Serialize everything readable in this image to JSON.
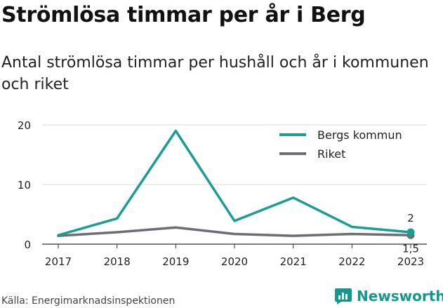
{
  "title": "Strömlösa timmar per år i Berg",
  "subtitle": "Antal strömlösa timmar per hushåll och år i kommunen och riket",
  "source": "Källa: Energimarknadsinspektionen",
  "brand": {
    "name": "Newsworthy",
    "icon": "newsworthy-logo-icon",
    "color": "#139891"
  },
  "chart_data": {
    "type": "line",
    "x": [
      "2017",
      "2018",
      "2019",
      "2020",
      "2021",
      "2022",
      "2023"
    ],
    "series": [
      {
        "name": "Bergs kommun",
        "color": "#1a9e94",
        "values": [
          1.5,
          4.3,
          19.0,
          3.9,
          7.8,
          2.9,
          2.0
        ],
        "end_label": "2"
      },
      {
        "name": "Riket",
        "color": "#6d6d75",
        "values": [
          1.4,
          2.0,
          2.8,
          1.7,
          1.4,
          1.7,
          1.5
        ],
        "end_label": "1,5"
      }
    ],
    "ylim": [
      0,
      20
    ],
    "yticks": [
      0,
      10,
      20
    ],
    "xlabel": "",
    "ylabel": "",
    "grid": true,
    "legend": "top-right"
  }
}
